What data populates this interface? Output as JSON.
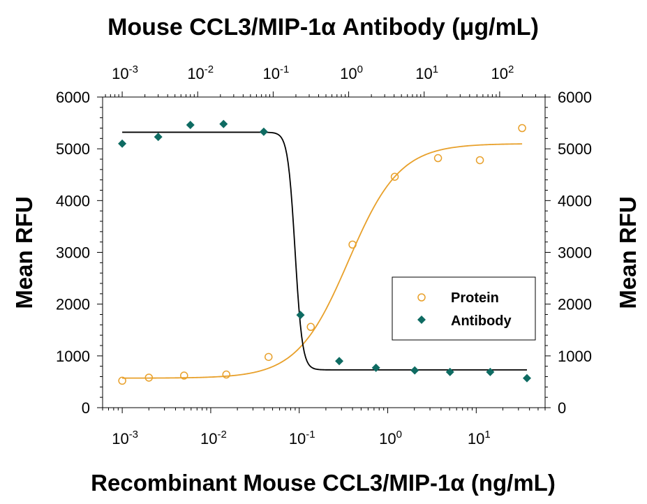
{
  "chart_data": {
    "type": "scatter",
    "title": "Mouse CCL3/MIP-1α Antibody (μg/mL)",
    "xlabel": "Recombinant Mouse CCL3/MIP-1α (ng/mL)",
    "ylabel_left": "Mean RFU",
    "ylabel_right": "Mean RFU",
    "xscale": "log",
    "xlim": [
      0.0006,
      60
    ],
    "ylim": [
      0,
      6000
    ],
    "y_ticks": [
      0,
      1000,
      2000,
      3000,
      4000,
      5000,
      6000
    ],
    "y_tick_labels": [
      "0",
      "1000",
      "2000",
      "3000",
      "4000",
      "5000",
      "6000"
    ],
    "x_bottom_ticks": [
      {
        "value": 0.001,
        "base": "10",
        "exp": "-3"
      },
      {
        "value": 0.01,
        "base": "10",
        "exp": "-2"
      },
      {
        "value": 0.1,
        "base": "10",
        "exp": "-1"
      },
      {
        "value": 1,
        "base": "10",
        "exp": "0"
      },
      {
        "value": 10,
        "base": "10",
        "exp": "1"
      }
    ],
    "top_axis": {
      "unit": "μg/mL",
      "xlim": [
        0.00055,
        400
      ],
      "ticks": [
        {
          "value": 0.001,
          "base": "10",
          "exp": "-3"
        },
        {
          "value": 0.01,
          "base": "10",
          "exp": "-2"
        },
        {
          "value": 0.1,
          "base": "10",
          "exp": "-1"
        },
        {
          "value": 1,
          "base": "10",
          "exp": "0"
        },
        {
          "value": 10,
          "base": "10",
          "exp": "1"
        },
        {
          "value": 100,
          "base": "10",
          "exp": "2"
        }
      ]
    },
    "legend_position": "center-right",
    "series": [
      {
        "name": "Protein",
        "marker": "open-circle",
        "color": "#E8A02A",
        "axis": "bottom",
        "x": [
          0.001,
          0.002,
          0.005,
          0.015,
          0.045,
          0.135,
          0.4,
          1.2,
          3.7,
          11,
          33
        ],
        "y": [
          520,
          580,
          620,
          640,
          980,
          1560,
          3150,
          4460,
          4820,
          4780,
          5400
        ],
        "fit": {
          "bottom": 570,
          "top": 5100,
          "ec50": 0.36,
          "hill": 1.5
        }
      },
      {
        "name": "Antibody",
        "marker": "filled-diamond",
        "color": "#0E6B62",
        "axis": "top",
        "x": [
          0.001,
          0.003,
          0.008,
          0.022,
          0.075,
          0.23,
          0.75,
          2.3,
          7.5,
          22,
          75,
          230
        ],
        "y": [
          5100,
          5230,
          5460,
          5480,
          5330,
          1790,
          900,
          770,
          720,
          690,
          690,
          570
        ],
        "fit": {
          "bottom": 730,
          "top": 5320,
          "ec50": 0.195,
          "hill": 9
        }
      }
    ]
  }
}
